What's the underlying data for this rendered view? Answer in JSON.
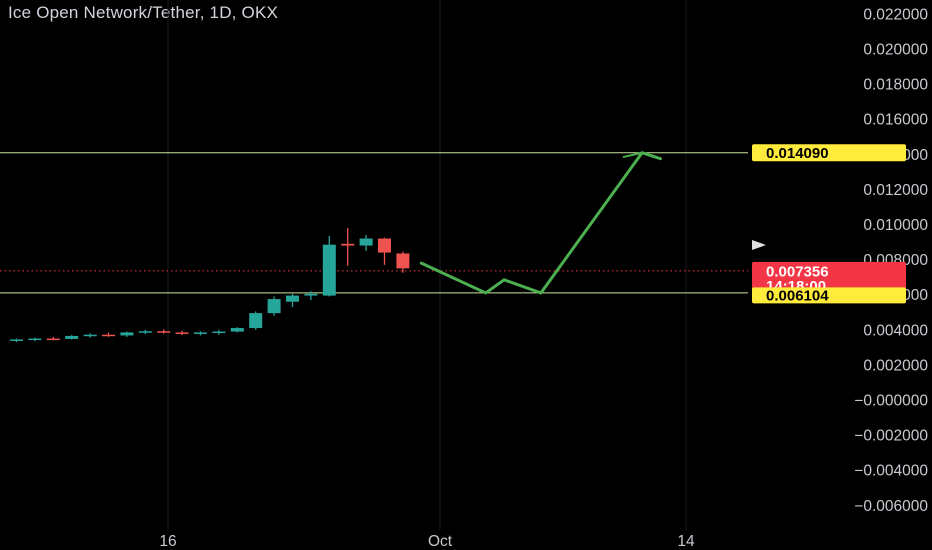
{
  "header": {
    "title": "Ice Open Network/Tether, 1D, OKX"
  },
  "colors": {
    "background": "#000000",
    "up": "#26a69a",
    "down": "#ef5350",
    "level_line": "#c8e6a0",
    "projection": "#4caf50",
    "target_tag": "#ffeb3b",
    "price_tag": "#f23645"
  },
  "chart_data": {
    "type": "candlestick",
    "x_axis": {
      "tick_labels": [
        "16",
        "Oct",
        "14"
      ]
    },
    "y_axis": {
      "range": [
        -0.0068,
        0.0224
      ],
      "ticks": [
        "0.022000",
        "0.020000",
        "0.018000",
        "0.016000",
        "0.014000",
        "0.012000",
        "0.010000",
        "0.008000",
        "0.006000",
        "0.004000",
        "0.002000",
        "−0.000000",
        "−0.002000",
        "−0.004000",
        "−0.006000"
      ],
      "tick_values": [
        0.022,
        0.02,
        0.018,
        0.016,
        0.014,
        0.012,
        0.01,
        0.008,
        0.006,
        0.004,
        0.002,
        0.0,
        -0.002,
        -0.004,
        -0.006
      ]
    },
    "grid": true,
    "candles": [
      {
        "o": 0.0034,
        "h": 0.0035,
        "l": 0.0033,
        "c": 0.00345
      },
      {
        "o": 0.00345,
        "h": 0.00355,
        "l": 0.00335,
        "c": 0.0035
      },
      {
        "o": 0.0035,
        "h": 0.0036,
        "l": 0.0034,
        "c": 0.00348
      },
      {
        "o": 0.00348,
        "h": 0.0037,
        "l": 0.00345,
        "c": 0.00365
      },
      {
        "o": 0.00365,
        "h": 0.0038,
        "l": 0.00355,
        "c": 0.00372
      },
      {
        "o": 0.00372,
        "h": 0.00385,
        "l": 0.0036,
        "c": 0.00368
      },
      {
        "o": 0.00368,
        "h": 0.0039,
        "l": 0.0036,
        "c": 0.00385
      },
      {
        "o": 0.00385,
        "h": 0.004,
        "l": 0.00375,
        "c": 0.00392
      },
      {
        "o": 0.00392,
        "h": 0.00402,
        "l": 0.00378,
        "c": 0.00385
      },
      {
        "o": 0.00385,
        "h": 0.00395,
        "l": 0.0037,
        "c": 0.00378
      },
      {
        "o": 0.00378,
        "h": 0.00392,
        "l": 0.00368,
        "c": 0.00385
      },
      {
        "o": 0.00385,
        "h": 0.004,
        "l": 0.00372,
        "c": 0.0039
      },
      {
        "o": 0.0039,
        "h": 0.00415,
        "l": 0.00385,
        "c": 0.0041
      },
      {
        "o": 0.0041,
        "h": 0.00505,
        "l": 0.004,
        "c": 0.00495
      },
      {
        "o": 0.00495,
        "h": 0.0059,
        "l": 0.0048,
        "c": 0.00575
      },
      {
        "o": 0.0056,
        "h": 0.00605,
        "l": 0.0053,
        "c": 0.00595
      },
      {
        "o": 0.00595,
        "h": 0.0062,
        "l": 0.0057,
        "c": 0.00605
      },
      {
        "o": 0.00595,
        "h": 0.00935,
        "l": 0.0059,
        "c": 0.00885
      },
      {
        "o": 0.0089,
        "h": 0.0098,
        "l": 0.00765,
        "c": 0.0088
      },
      {
        "o": 0.0088,
        "h": 0.0094,
        "l": 0.0085,
        "c": 0.0092
      },
      {
        "o": 0.0092,
        "h": 0.00925,
        "l": 0.0077,
        "c": 0.0084
      },
      {
        "o": 0.00835,
        "h": 0.00845,
        "l": 0.00725,
        "c": 0.0075
      }
    ],
    "levels": [
      {
        "name": "target",
        "value": 0.01409,
        "label": "0.014090"
      },
      {
        "name": "support",
        "value": 0.006104,
        "label": "0.006104"
      }
    ],
    "current_price": {
      "value": 0.007356,
      "label": "0.007356",
      "countdown": "14:18:00"
    },
    "projection_path": [
      {
        "bar": 22.0,
        "price": 0.0078
      },
      {
        "bar": 25.5,
        "price": 0.0061
      },
      {
        "bar": 26.5,
        "price": 0.00685
      },
      {
        "bar": 28.5,
        "price": 0.0061
      },
      {
        "bar": 34.0,
        "price": 0.01409
      },
      {
        "bar": 35.0,
        "price": 0.01375
      }
    ],
    "projection_arrow_tail": {
      "bar": 33.0,
      "price": 0.01385
    }
  }
}
